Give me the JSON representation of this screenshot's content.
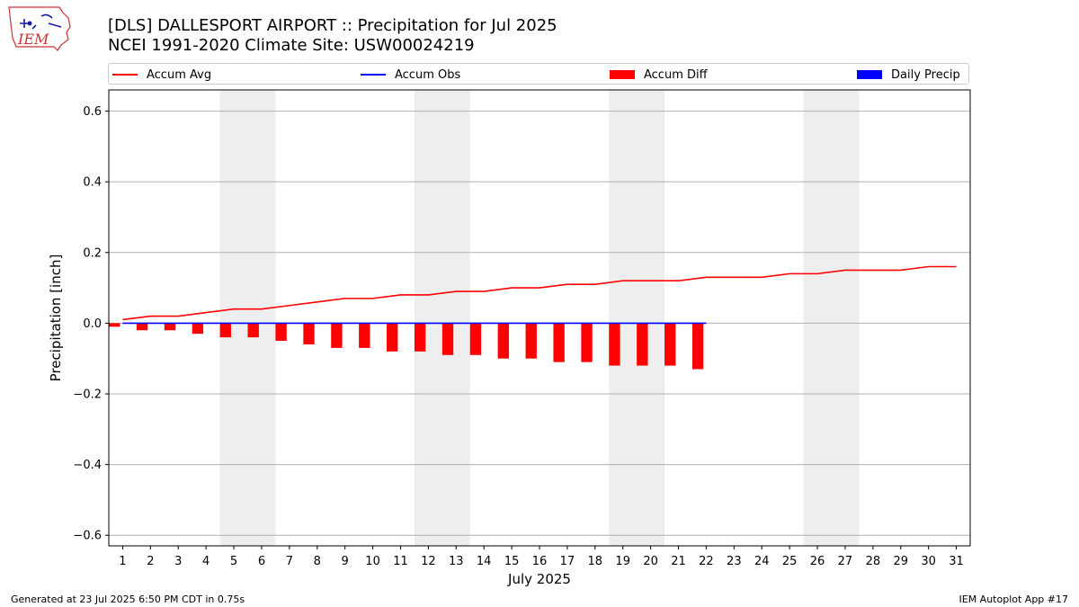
{
  "logo": {
    "text": "IEM"
  },
  "title_line1": "[DLS] DALLESPORT AIRPORT :: Precipitation for Jul 2025",
  "title_line2": "NCEI 1991-2020 Climate Site: USW00024219",
  "footer_left": "Generated at 23 Jul 2025 6:50 PM CDT in 0.75s",
  "footer_right": "IEM Autoplot App #17",
  "colors": {
    "avg": "#ff0000",
    "obs": "#0000ff",
    "diff": "#ff0000",
    "daily": "#0000ff",
    "weekend": "#eeeeee",
    "grid": "#b0b0b0"
  },
  "legend": [
    {
      "label": "Accum Avg",
      "kind": "line",
      "color": "#ff0000"
    },
    {
      "label": "Accum Obs",
      "kind": "line",
      "color": "#0000ff"
    },
    {
      "label": "Accum Diff",
      "kind": "patch",
      "color": "#ff0000"
    },
    {
      "label": "Daily Precip",
      "kind": "patch",
      "color": "#0000ff"
    }
  ],
  "chart_data": {
    "type": "bar",
    "title": "[DLS] DALLESPORT AIRPORT :: Precipitation for Jul 2025",
    "subtitle": "NCEI 1991-2020 Climate Site: USW00024219",
    "xlabel": "July 2025",
    "ylabel": "Precipitation [inch]",
    "xlim": [
      0.5,
      31.5
    ],
    "ylim": [
      -0.63,
      0.66
    ],
    "yticks": [
      -0.6,
      -0.4,
      -0.2,
      0.0,
      0.2,
      0.4,
      0.6
    ],
    "ytick_labels": [
      "−0.6",
      "−0.4",
      "−0.2",
      "0.0",
      "0.2",
      "0.4",
      "0.6"
    ],
    "days": [
      1,
      2,
      3,
      4,
      5,
      6,
      7,
      8,
      9,
      10,
      11,
      12,
      13,
      14,
      15,
      16,
      17,
      18,
      19,
      20,
      21,
      22,
      23,
      24,
      25,
      26,
      27,
      28,
      29,
      30,
      31
    ],
    "weekend_spans": [
      [
        5,
        6
      ],
      [
        12,
        13
      ],
      [
        19,
        20
      ],
      [
        26,
        27
      ]
    ],
    "grid": "horizontal",
    "legend_position": "top",
    "series": [
      {
        "name": "Accum Avg",
        "type": "line",
        "x": [
          1,
          2,
          3,
          4,
          5,
          6,
          7,
          8,
          9,
          10,
          11,
          12,
          13,
          14,
          15,
          16,
          17,
          18,
          19,
          20,
          21,
          22,
          23,
          24,
          25,
          26,
          27,
          28,
          29,
          30,
          31
        ],
        "values": [
          0.01,
          0.02,
          0.02,
          0.03,
          0.04,
          0.04,
          0.05,
          0.06,
          0.07,
          0.07,
          0.08,
          0.08,
          0.09,
          0.09,
          0.1,
          0.1,
          0.11,
          0.11,
          0.12,
          0.12,
          0.12,
          0.13,
          0.13,
          0.13,
          0.14,
          0.14,
          0.15,
          0.15,
          0.15,
          0.16,
          0.16
        ]
      },
      {
        "name": "Accum Obs",
        "type": "line",
        "x": [
          1,
          2,
          3,
          4,
          5,
          6,
          7,
          8,
          9,
          10,
          11,
          12,
          13,
          14,
          15,
          16,
          17,
          18,
          19,
          20,
          21,
          22
        ],
        "values": [
          0,
          0,
          0,
          0,
          0,
          0,
          0,
          0,
          0,
          0,
          0,
          0,
          0,
          0,
          0,
          0,
          0,
          0,
          0,
          0,
          0,
          0
        ]
      },
      {
        "name": "Accum Diff",
        "type": "bar",
        "x": [
          1,
          2,
          3,
          4,
          5,
          6,
          7,
          8,
          9,
          10,
          11,
          12,
          13,
          14,
          15,
          16,
          17,
          18,
          19,
          20,
          21,
          22
        ],
        "values": [
          -0.01,
          -0.02,
          -0.02,
          -0.03,
          -0.04,
          -0.04,
          -0.05,
          -0.06,
          -0.07,
          -0.07,
          -0.08,
          -0.08,
          -0.09,
          -0.09,
          -0.1,
          -0.1,
          -0.11,
          -0.11,
          -0.12,
          -0.12,
          -0.12,
          -0.13
        ]
      },
      {
        "name": "Daily Precip",
        "type": "bar",
        "x": [
          1,
          2,
          3,
          4,
          5,
          6,
          7,
          8,
          9,
          10,
          11,
          12,
          13,
          14,
          15,
          16,
          17,
          18,
          19,
          20,
          21,
          22
        ],
        "values": [
          0,
          0,
          0,
          0,
          0,
          0,
          0,
          0,
          0,
          0,
          0,
          0,
          0,
          0,
          0,
          0,
          0,
          0,
          0,
          0,
          0,
          0
        ]
      }
    ]
  }
}
